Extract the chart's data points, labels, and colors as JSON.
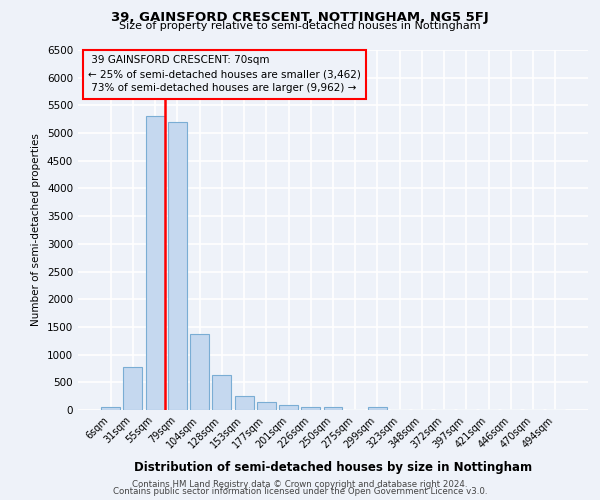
{
  "title1": "39, GAINSFORD CRESCENT, NOTTINGHAM, NG5 5FJ",
  "title2": "Size of property relative to semi-detached houses in Nottingham",
  "xlabel": "Distribution of semi-detached houses by size in Nottingham",
  "ylabel": "Number of semi-detached properties",
  "property_label": "39 GAINSFORD CRESCENT: 70sqm",
  "pct_smaller": 25,
  "count_smaller": 3462,
  "pct_larger": 73,
  "count_larger": 9962,
  "categories": [
    "6sqm",
    "31sqm",
    "55sqm",
    "79sqm",
    "104sqm",
    "128sqm",
    "153sqm",
    "177sqm",
    "201sqm",
    "226sqm",
    "250sqm",
    "275sqm",
    "299sqm",
    "323sqm",
    "348sqm",
    "372sqm",
    "397sqm",
    "421sqm",
    "446sqm",
    "470sqm",
    "494sqm"
  ],
  "values": [
    55,
    770,
    5300,
    5200,
    1380,
    625,
    255,
    140,
    85,
    60,
    55,
    0,
    60,
    0,
    0,
    0,
    0,
    0,
    0,
    0,
    0
  ],
  "bar_color": "#c5d8ef",
  "bar_edge_color": "#7aadd4",
  "highlight_line_color": "red",
  "annotation_box_edge_color": "red",
  "ylim": [
    0,
    6500
  ],
  "yticks": [
    0,
    500,
    1000,
    1500,
    2000,
    2500,
    3000,
    3500,
    4000,
    4500,
    5000,
    5500,
    6000,
    6500
  ],
  "footer1": "Contains HM Land Registry data © Crown copyright and database right 2024.",
  "footer2": "Contains public sector information licensed under the Open Government Licence v3.0.",
  "bg_color": "#eef2f9",
  "grid_color": "#ffffff"
}
